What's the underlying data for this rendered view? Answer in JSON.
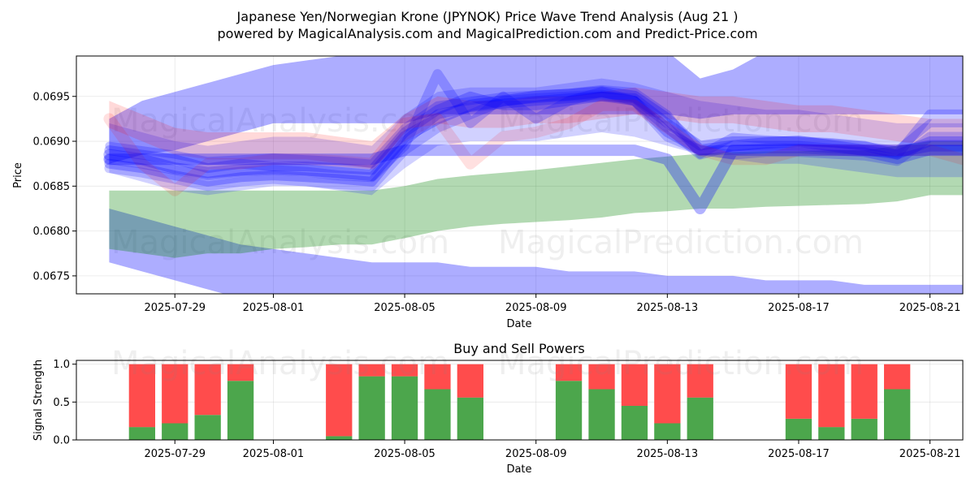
{
  "title_line1": "Japanese Yen/Norwegian Krone (JPYNOK) Price Wave Trend Analysis (Aug 21 )",
  "title_line2": "powered by MagicalAnalysis.com and MagicalPrediction.com and Predict-Price.com",
  "watermark_1": "MagicalAnalysis.com",
  "watermark_2": "MagicalPrediction.com",
  "chart_data": [
    {
      "type": "area",
      "title": "",
      "xlabel": "Date",
      "ylabel": "Price",
      "x_range": [
        "2025-07-26",
        "2025-08-22"
      ],
      "ylim": [
        0.0673,
        0.06995
      ],
      "x_ticks": [
        "2025-07-29",
        "2025-08-01",
        "2025-08-05",
        "2025-08-09",
        "2025-08-13",
        "2025-08-17",
        "2025-08-21"
      ],
      "y_ticks": [
        0.0675,
        0.068,
        0.0685,
        0.069,
        0.0695
      ],
      "grid": true,
      "colors": {
        "bands": "#0000ff",
        "green": "#008000",
        "red": "#ff0000",
        "pink": "#ffb0b0"
      },
      "x": [
        "2025-07-27",
        "2025-07-28",
        "2025-07-29",
        "2025-07-30",
        "2025-07-31",
        "2025-08-01",
        "2025-08-02",
        "2025-08-03",
        "2025-08-04",
        "2025-08-05",
        "2025-08-06",
        "2025-08-07",
        "2025-08-08",
        "2025-08-09",
        "2025-08-10",
        "2025-08-11",
        "2025-08-12",
        "2025-08-13",
        "2025-08-14",
        "2025-08-15",
        "2025-08-16",
        "2025-08-17",
        "2025-08-18",
        "2025-08-19",
        "2025-08-20",
        "2025-08-21",
        "2025-08-22"
      ],
      "series": [
        {
          "kind": "band",
          "color": "#0000ff",
          "opacity": 0.32,
          "upper": [
            0.06925,
            0.06945,
            0.06955,
            0.06965,
            0.06975,
            0.06985,
            0.0699,
            0.06995,
            0.07,
            0.07,
            0.07,
            0.07,
            0.07,
            0.07,
            0.07,
            0.07,
            0.07,
            0.07,
            0.0697,
            0.0698,
            0.07,
            0.07,
            0.07,
            0.07,
            0.07,
            0.07,
            0.07
          ],
          "lower": [
            0.06875,
            0.06885,
            0.0689,
            0.069,
            0.0691,
            0.0692,
            0.0692,
            0.0692,
            0.0692,
            0.0692,
            0.0693,
            0.0693,
            0.0693,
            0.0693,
            0.0693,
            0.0693,
            0.0693,
            0.0693,
            0.06925,
            0.0693,
            0.0693,
            0.0693,
            0.0693,
            0.0693,
            0.0693,
            0.0693,
            0.0693
          ]
        },
        {
          "kind": "band",
          "color": "#0000ff",
          "opacity": 0.32,
          "upper": [
            0.06825,
            0.06815,
            0.06805,
            0.06795,
            0.06785,
            0.0678,
            0.06775,
            0.0677,
            0.06765,
            0.06765,
            0.06765,
            0.0676,
            0.0676,
            0.0676,
            0.06755,
            0.06755,
            0.06755,
            0.0675,
            0.0675,
            0.0675,
            0.06745,
            0.06745,
            0.06745,
            0.0674,
            0.0674,
            0.0674,
            0.0674
          ],
          "lower": [
            0.06765,
            0.06755,
            0.06745,
            0.06735,
            0.06725,
            0.0672,
            0.06715,
            0.0671,
            0.06705,
            0.06705,
            0.06705,
            0.067,
            0.067,
            0.067,
            0.06695,
            0.06695,
            0.06695,
            0.0669,
            0.0669,
            0.0669,
            0.06685,
            0.06685,
            0.06685,
            0.0668,
            0.0668,
            0.0668,
            0.0668
          ]
        },
        {
          "kind": "band",
          "color": "#008000",
          "opacity": 0.3,
          "upper": [
            0.06845,
            0.06845,
            0.06845,
            0.06845,
            0.06845,
            0.06845,
            0.06845,
            0.06845,
            0.06845,
            0.0685,
            0.06858,
            0.06862,
            0.06865,
            0.06868,
            0.06872,
            0.06876,
            0.0688,
            0.06883,
            0.06886,
            0.06888,
            0.06889,
            0.06889,
            0.0689,
            0.0689,
            0.06895,
            0.069,
            0.069
          ],
          "lower": [
            0.0678,
            0.06775,
            0.0677,
            0.06775,
            0.06775,
            0.0678,
            0.06782,
            0.06785,
            0.06785,
            0.06792,
            0.068,
            0.06805,
            0.06808,
            0.0681,
            0.06812,
            0.06815,
            0.0682,
            0.06822,
            0.06825,
            0.06825,
            0.06827,
            0.06828,
            0.06829,
            0.0683,
            0.06833,
            0.0684,
            0.0684
          ]
        },
        {
          "kind": "band",
          "color": "#0000ff",
          "opacity": 0.18,
          "upper": [
            0.0692,
            0.0691,
            0.069,
            0.06895,
            0.069,
            0.06905,
            0.06905,
            0.069,
            0.06895,
            0.0693,
            0.06955,
            0.0696,
            0.0696,
            0.0696,
            0.06965,
            0.0697,
            0.06965,
            0.06955,
            0.06945,
            0.0694,
            0.06935,
            0.06935,
            0.0693,
            0.06925,
            0.0692,
            0.0692,
            0.0692
          ],
          "lower": [
            0.06865,
            0.06855,
            0.06845,
            0.0684,
            0.06845,
            0.0685,
            0.0685,
            0.06845,
            0.0684,
            0.0687,
            0.06895,
            0.069,
            0.069,
            0.069,
            0.06905,
            0.0691,
            0.06905,
            0.06895,
            0.06885,
            0.0688,
            0.06875,
            0.06875,
            0.0687,
            0.06865,
            0.0686,
            0.0686,
            0.0686
          ]
        },
        {
          "kind": "band",
          "color": "#ff0000",
          "opacity": 0.15,
          "upper": [
            0.06945,
            0.0693,
            0.06915,
            0.0691,
            0.0691,
            0.0691,
            0.0691,
            0.06905,
            0.069,
            0.0693,
            0.0695,
            0.06945,
            0.06945,
            0.0695,
            0.0695,
            0.06955,
            0.0696,
            0.06955,
            0.0695,
            0.0695,
            0.06945,
            0.0694,
            0.0694,
            0.06935,
            0.0693,
            0.06925,
            0.06925
          ],
          "lower": [
            0.06915,
            0.069,
            0.06885,
            0.0688,
            0.0688,
            0.0688,
            0.0688,
            0.06875,
            0.0687,
            0.069,
            0.0692,
            0.06915,
            0.06915,
            0.0692,
            0.0692,
            0.06925,
            0.0693,
            0.06925,
            0.0692,
            0.0692,
            0.06915,
            0.0691,
            0.0691,
            0.06905,
            0.069,
            0.06895,
            0.06895
          ]
        },
        {
          "kind": "line",
          "color": "#0000ff",
          "opacity": 0.28,
          "width": 14,
          "y": [
            0.06885,
            0.0688,
            0.0687,
            0.06865,
            0.06868,
            0.0687,
            0.06868,
            0.06865,
            0.06862,
            0.06905,
            0.06925,
            0.0694,
            0.06945,
            0.0695,
            0.06952,
            0.06955,
            0.0695,
            0.06925,
            0.0689,
            0.06895,
            0.06898,
            0.069,
            0.06895,
            0.0689,
            0.06888,
            0.06895,
            0.06895
          ]
        },
        {
          "kind": "line",
          "color": "#0000ff",
          "opacity": 0.25,
          "width": 12,
          "y": [
            0.0689,
            0.06885,
            0.0688,
            0.0687,
            0.06875,
            0.06872,
            0.06872,
            0.0687,
            0.06868,
            0.0691,
            0.06935,
            0.0695,
            0.0694,
            0.0694,
            0.06945,
            0.0695,
            0.06948,
            0.0692,
            0.06895,
            0.069,
            0.069,
            0.069,
            0.06898,
            0.06895,
            0.06885,
            0.069,
            0.069
          ]
        },
        {
          "kind": "line",
          "color": "#0000ff",
          "opacity": 0.25,
          "width": 12,
          "y": [
            0.06875,
            0.0687,
            0.06862,
            0.06855,
            0.0686,
            0.06862,
            0.0686,
            0.06858,
            0.06855,
            0.069,
            0.0693,
            0.06938,
            0.06942,
            0.06945,
            0.06948,
            0.0695,
            0.06945,
            0.0691,
            0.0689,
            0.0689,
            0.06892,
            0.06892,
            0.0689,
            0.06888,
            0.0688,
            0.0689,
            0.0689
          ]
        },
        {
          "kind": "line",
          "color": "#0000ff",
          "opacity": 0.22,
          "width": 12,
          "y": [
            0.0688,
            0.06875,
            0.06868,
            0.06862,
            0.06866,
            0.06868,
            0.06866,
            0.06862,
            0.0686,
            0.06895,
            0.06975,
            0.0692,
            0.0695,
            0.06925,
            0.06945,
            0.06955,
            0.06945,
            0.06915,
            0.06885,
            0.06895,
            0.06895,
            0.06895,
            0.06892,
            0.0689,
            0.06885,
            0.0693,
            0.0693
          ]
        },
        {
          "kind": "line",
          "color": "#0000ff",
          "opacity": 0.2,
          "width": 12,
          "y": [
            0.0687,
            0.06865,
            0.06858,
            0.0685,
            0.06855,
            0.06858,
            0.06855,
            0.06852,
            0.0685,
            0.0689,
            0.06915,
            0.0693,
            0.06945,
            0.06948,
            0.0695,
            0.06952,
            0.06945,
            0.06905,
            0.0689,
            0.06885,
            0.06888,
            0.06888,
            0.06886,
            0.06884,
            0.06878,
            0.06905,
            0.06905
          ]
        },
        {
          "kind": "line",
          "color": "#0000ff",
          "opacity": 0.22,
          "width": 10,
          "y": [
            0.06895,
            0.0689,
            0.06885,
            0.06878,
            0.0688,
            0.06882,
            0.0688,
            0.06878,
            0.06875,
            0.06915,
            0.0694,
            0.06945,
            0.0695,
            0.06952,
            0.06954,
            0.06958,
            0.06955,
            0.0693,
            0.06885,
            0.06905,
            0.06902,
            0.069,
            0.06898,
            0.06895,
            0.0689,
            0.0692,
            0.0692
          ]
        },
        {
          "kind": "line",
          "color": "#ff0000",
          "opacity": 0.12,
          "width": 14,
          "y": [
            0.06925,
            0.06875,
            0.06845,
            0.06875,
            0.06875,
            0.0688,
            0.0688,
            0.06878,
            0.06875,
            0.0692,
            0.06925,
            0.06875,
            0.06905,
            0.0691,
            0.0692,
            0.0694,
            0.0694,
            0.06915,
            0.0689,
            0.0688,
            0.0688,
            0.0689,
            0.0689,
            0.0689,
            0.0689,
            0.0689,
            0.0688
          ]
        },
        {
          "kind": "line",
          "color": "#0000ff",
          "opacity": 0.3,
          "width": 14,
          "y": [
            0.0688,
            0.0688,
            0.0688,
            0.0688,
            0.0688,
            0.0688,
            0.0688,
            0.0688,
            0.0688,
            0.0689,
            0.0689,
            0.0689,
            0.0689,
            0.0689,
            0.0689,
            0.0689,
            0.0689,
            0.0688,
            0.06825,
            0.0689,
            0.0689,
            0.0689,
            0.0689,
            0.0689,
            0.0689,
            0.0689,
            0.0689
          ]
        }
      ]
    },
    {
      "type": "bar",
      "title": "Buy and Sell Powers",
      "xlabel": "Date",
      "ylabel": "Signal Strength",
      "ylim": [
        0,
        1.05
      ],
      "x_range": [
        "2025-07-26",
        "2025-08-22"
      ],
      "x_ticks": [
        "2025-07-29",
        "2025-08-01",
        "2025-08-05",
        "2025-08-09",
        "2025-08-13",
        "2025-08-17",
        "2025-08-21"
      ],
      "y_ticks": [
        0.0,
        0.5,
        1.0
      ],
      "y_tick_labels": [
        "0.0",
        "0.5",
        "1.0"
      ],
      "grid": true,
      "colors": {
        "buy": "#4ca64c",
        "sell": "#ff4c4c"
      },
      "categories": [
        "2025-07-28",
        "2025-07-29",
        "2025-07-30",
        "2025-07-31",
        "2025-08-03",
        "2025-08-04",
        "2025-08-05",
        "2025-08-06",
        "2025-08-07",
        "2025-08-10",
        "2025-08-11",
        "2025-08-12",
        "2025-08-13",
        "2025-08-14",
        "2025-08-17",
        "2025-08-18",
        "2025-08-19",
        "2025-08-20"
      ],
      "buy": [
        0.17,
        0.22,
        0.33,
        0.78,
        0.05,
        0.84,
        0.84,
        0.67,
        0.56,
        0.78,
        0.67,
        0.45,
        0.22,
        0.56,
        0.28,
        0.17,
        0.28,
        0.67
      ],
      "sell": [
        0.83,
        0.78,
        0.67,
        0.22,
        0.95,
        0.16,
        0.16,
        0.33,
        0.44,
        0.22,
        0.33,
        0.55,
        0.78,
        0.44,
        0.72,
        0.83,
        0.72,
        0.33
      ]
    }
  ]
}
